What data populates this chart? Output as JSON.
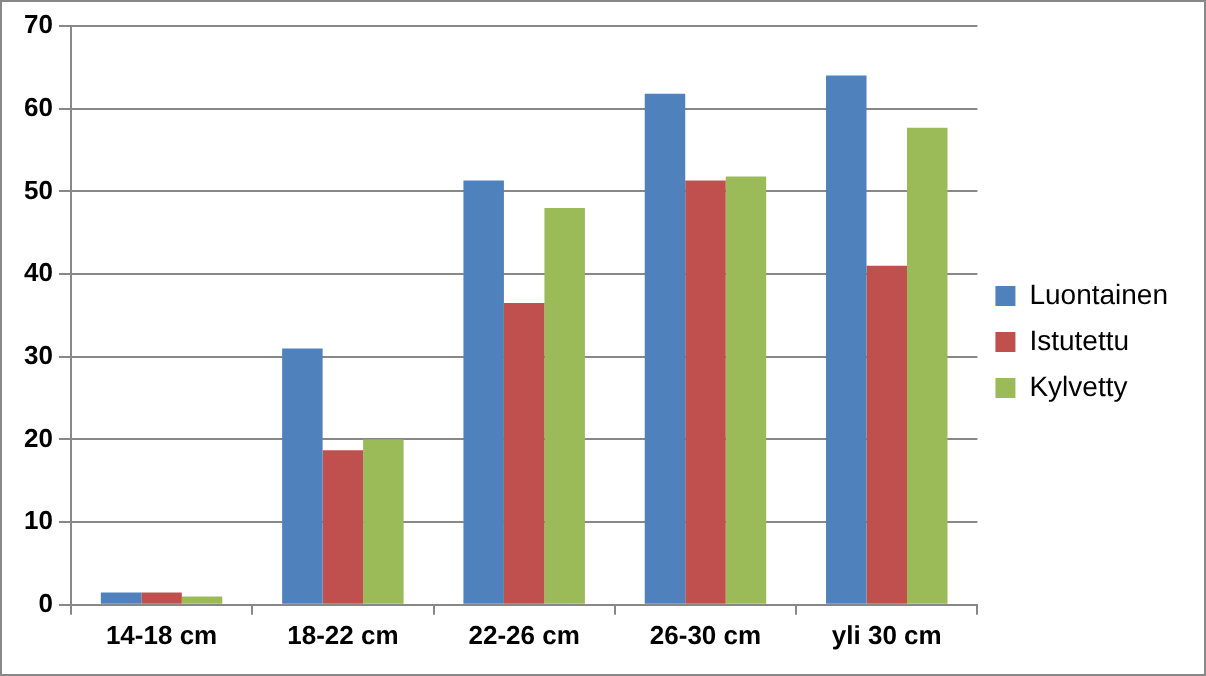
{
  "chart_data": {
    "type": "bar",
    "categories": [
      "14-18 cm",
      "18-22 cm",
      "22-26 cm",
      "26-30 cm",
      "yli 30 cm"
    ],
    "series": [
      {
        "name": "Luontainen",
        "color": "#4f81bd",
        "values": [
          1.5,
          31,
          51.3,
          61.8,
          64
        ]
      },
      {
        "name": "Istutettu",
        "color": "#c0504d",
        "values": [
          1.5,
          18.7,
          36.5,
          51.3,
          41
        ]
      },
      {
        "name": "Kylvetty",
        "color": "#9bbb59",
        "values": [
          1,
          20,
          48,
          51.8,
          57.7
        ]
      }
    ],
    "ylim": [
      0,
      70
    ],
    "yticks": [
      0,
      10,
      20,
      30,
      40,
      50,
      60,
      70
    ],
    "grid": "y",
    "legend": "right"
  }
}
